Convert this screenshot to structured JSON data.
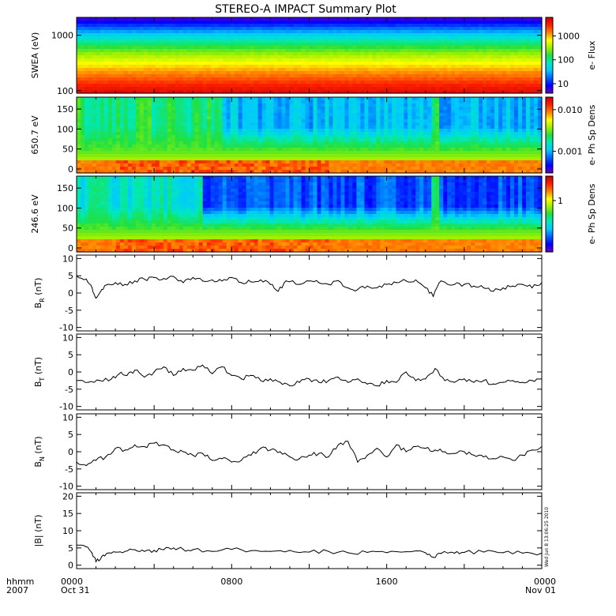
{
  "title": "STEREO-A IMPACT Summary Plot",
  "time_axis": {
    "row1_label": "hhmm",
    "row2_label": "2007",
    "ticks": [
      {
        "hour": 0,
        "label": "0000",
        "date": "Oct 31"
      },
      {
        "hour": 8,
        "label": "0800",
        "date": ""
      },
      {
        "hour": 16,
        "label": "1600",
        "date": ""
      },
      {
        "hour": 24,
        "label": "0000",
        "date": "Nov 01"
      }
    ]
  },
  "timestamp": "Wed Jun  8 13:06:25 2010",
  "colors": {
    "colormap": [
      "#6a00c8",
      "#0000ff",
      "#0060ff",
      "#00c8ff",
      "#00e8c0",
      "#20e040",
      "#a0f000",
      "#ffff00",
      "#ff8000",
      "#ff2000",
      "#c80000"
    ],
    "line": "#000000"
  },
  "chart_data": [
    {
      "type": "heatmap",
      "ylabel": "SWEA (eV)",
      "yscale": "log",
      "ylim": [
        90,
        2100
      ],
      "yticks": [
        100,
        1000
      ],
      "yticklabels": [
        "100",
        "1000"
      ],
      "colorbar": {
        "label": "e- Flux",
        "scale": "log",
        "range": [
          4,
          6000
        ],
        "ticks": [
          10,
          100,
          1000
        ],
        "ticklabels": [
          "10",
          "100",
          "1000"
        ]
      },
      "x_hours": [
        0,
        24
      ],
      "profile_energy_eV": [
        90,
        120,
        170,
        250,
        350,
        500,
        700,
        1000,
        1300,
        1600,
        1900,
        2100
      ],
      "profile_flux": [
        4500,
        3200,
        1800,
        1000,
        520,
        260,
        120,
        45,
        20,
        10,
        6,
        5
      ]
    },
    {
      "type": "heatmap",
      "ylabel": "650.7 eV",
      "ylim": [
        -10,
        180
      ],
      "yticks": [
        0,
        50,
        100,
        150
      ],
      "yticklabels": [
        "0",
        "50",
        "100",
        "150"
      ],
      "colorbar": {
        "label": "e- Ph Sp Dens",
        "scale": "log",
        "range": [
          0.0003,
          0.02
        ],
        "ticks": [
          0.001,
          0.01
        ],
        "ticklabels": [
          "0.001",
          "0.010"
        ]
      },
      "x_hours": [
        0,
        24
      ]
    },
    {
      "type": "heatmap",
      "ylabel": "246.6 eV",
      "ylim": [
        -10,
        180
      ],
      "yticks": [
        0,
        50,
        100,
        150
      ],
      "yticklabels": [
        "0",
        "50",
        "100",
        "150"
      ],
      "colorbar": {
        "label": "e- Ph Sp Dens",
        "scale": "log",
        "range": [
          0.1,
          3
        ],
        "ticks": [
          1
        ],
        "ticklabels": [
          "1"
        ]
      },
      "x_hours": [
        0,
        24
      ]
    },
    {
      "type": "line",
      "ylabel_main": "B",
      "ylabel_sub": "R",
      "ylabel_unit": "(nT)",
      "ylim": [
        -11,
        11
      ],
      "yticks": [
        -10,
        -5,
        0,
        5,
        10
      ],
      "yticklabels": [
        "-10",
        "-5",
        "0",
        "5",
        "10"
      ],
      "x_hours": [
        0,
        0.5,
        0.8,
        1.0,
        1.3,
        1.6,
        2,
        2.5,
        3,
        3.5,
        4,
        4.5,
        5,
        5.5,
        6,
        6.5,
        7,
        7.5,
        8,
        8.5,
        9,
        9.5,
        10,
        10.4,
        10.8,
        11.5,
        12,
        12.5,
        13,
        13.5,
        14,
        14.5,
        15,
        15.5,
        16,
        16.5,
        17,
        17.5,
        18,
        18.4,
        18.8,
        19.5,
        20,
        20.5,
        21,
        21.5,
        22,
        22.5,
        23,
        23.5,
        24
      ],
      "y": [
        5,
        4,
        1.5,
        -1.5,
        1,
        2.5,
        3,
        2.5,
        3.5,
        4,
        4.5,
        4.2,
        4.8,
        3,
        4.5,
        3.5,
        3.8,
        3.5,
        4.5,
        3,
        3.2,
        3.8,
        2.5,
        0.5,
        3.5,
        2.5,
        3.5,
        3,
        2.5,
        3.6,
        1.5,
        1,
        2,
        1.5,
        2.5,
        3,
        3.5,
        3.8,
        1.5,
        -1,
        3.5,
        2.5,
        2.5,
        2,
        1.5,
        0.5,
        1.5,
        2,
        2.5,
        1.5,
        3
      ]
    },
    {
      "type": "line",
      "ylabel_main": "B",
      "ylabel_sub": "T",
      "ylabel_unit": "(nT)",
      "ylim": [
        -11,
        11
      ],
      "yticks": [
        -10,
        -5,
        0,
        5,
        10
      ],
      "yticklabels": [
        "-10",
        "-5",
        "0",
        "5",
        "10"
      ],
      "x_hours": [
        0,
        0.6,
        1.2,
        1.8,
        2.2,
        2.6,
        3,
        3.5,
        4,
        4.5,
        5,
        5.5,
        6,
        6.5,
        7,
        7.5,
        8,
        8.5,
        9,
        9.5,
        10,
        10.5,
        11,
        11.5,
        12,
        12.5,
        13,
        13.5,
        14,
        14.5,
        15,
        15.5,
        16,
        16.5,
        17,
        17.5,
        18,
        18.5,
        19,
        19.5,
        20,
        20.5,
        21,
        21.5,
        22,
        22.5,
        23,
        23.5,
        24
      ],
      "y": [
        -2.5,
        -3,
        -2.5,
        -2,
        -0.5,
        -1,
        0.5,
        -1.5,
        0,
        1.5,
        -1,
        1,
        0.5,
        2,
        -0.5,
        1.5,
        -1,
        -2,
        -1,
        -2.5,
        -2,
        -3,
        -4,
        -3,
        -2,
        -3,
        -2.5,
        -1.5,
        -3,
        -2,
        -3.5,
        -4,
        -2.5,
        -3,
        0,
        -2.5,
        -2,
        1,
        -2.5,
        -3,
        -2,
        -3,
        -2.5,
        -3.5,
        -3,
        -2.5,
        -3,
        -2.5,
        -2
      ]
    },
    {
      "type": "line",
      "ylabel_main": "B",
      "ylabel_sub": "N",
      "ylabel_unit": "(nT)",
      "ylim": [
        -11,
        11
      ],
      "yticks": [
        -10,
        -5,
        0,
        5,
        10
      ],
      "yticklabels": [
        "-10",
        "-5",
        "0",
        "5",
        "10"
      ],
      "x_hours": [
        0,
        0.5,
        1,
        1.5,
        2,
        2.5,
        3,
        3.5,
        4,
        4.5,
        5,
        5.5,
        6,
        6.5,
        7,
        7.5,
        8,
        8.5,
        9,
        9.5,
        10,
        10.5,
        11,
        11.5,
        12,
        12.5,
        13,
        13.5,
        14,
        14.5,
        15,
        15.5,
        16,
        16.5,
        17,
        17.5,
        18,
        18.5,
        19,
        19.5,
        20,
        20.5,
        21,
        21.5,
        22,
        22.5,
        23,
        23.5,
        24
      ],
      "y": [
        -3,
        -4,
        -2.5,
        -1.5,
        1,
        0.5,
        2,
        1.5,
        2.5,
        2,
        0.5,
        0,
        -1,
        -0.5,
        -2.5,
        -2,
        -3,
        -2.5,
        -1,
        1,
        0.5,
        0,
        -1.5,
        -2,
        -1,
        -0.5,
        -1.5,
        2,
        3,
        -3,
        -1,
        1,
        -1.5,
        2,
        0,
        1.5,
        1,
        0.5,
        0,
        -0.5,
        0,
        -1,
        -1.5,
        -2,
        -1.5,
        -2.5,
        -1,
        0.5,
        1.5
      ]
    },
    {
      "type": "line",
      "ylabel_main": "|B|",
      "ylabel_sub": "",
      "ylabel_unit": "(nT)",
      "ylim": [
        -1,
        21
      ],
      "yticks": [
        0,
        5,
        10,
        15,
        20
      ],
      "yticklabels": [
        "0",
        "5",
        "10",
        "15",
        "20"
      ],
      "x_hours": [
        0,
        0.5,
        0.8,
        1.0,
        1.3,
        1.6,
        2,
        2.5,
        3,
        3.5,
        4,
        4.5,
        5,
        5.5,
        6,
        7,
        8,
        9,
        10,
        11,
        12,
        13,
        14,
        15,
        16,
        17,
        18,
        18.4,
        18.8,
        19.5,
        20,
        21,
        22,
        23,
        24
      ],
      "y": [
        5.8,
        5.3,
        3.5,
        1,
        2.5,
        3.5,
        3.8,
        4,
        4.5,
        4,
        4.3,
        4.5,
        5,
        4.6,
        4.5,
        4,
        4.6,
        4.2,
        4,
        4.3,
        3.8,
        4,
        3.6,
        3.7,
        3.6,
        3.9,
        3.6,
        2.3,
        3.4,
        3.5,
        3.7,
        3.8,
        3.6,
        3.5,
        3.5
      ]
    }
  ]
}
